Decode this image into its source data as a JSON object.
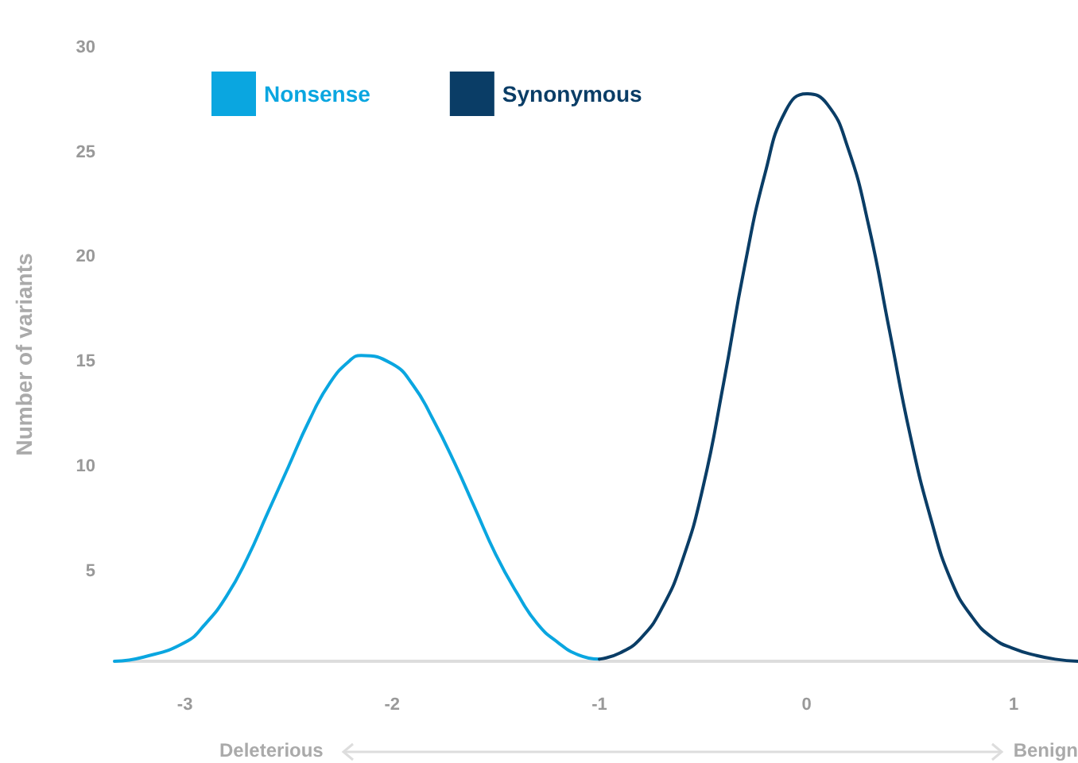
{
  "chart_data": {
    "type": "line",
    "ylabel": "Number of variants",
    "xlim": [
      -3.34,
      1.31
    ],
    "xticks": [
      -3,
      -2,
      -1,
      0,
      1
    ],
    "ylim": [
      0.7,
      30
    ],
    "yticks": [
      5,
      10,
      15,
      20,
      25,
      30
    ],
    "grid": false,
    "legend": "top left",
    "marker": "none",
    "line_style": "solid",
    "annotations": [
      "Deleterious",
      "Benign"
    ],
    "series": [
      {
        "name": "Nonsense",
        "color": "#0aa6e0",
        "x": [
          -3.34,
          -3.2,
          -3.0,
          -2.9,
          -2.8,
          -2.7,
          -2.6,
          -2.5,
          -2.4,
          -2.3,
          -2.2,
          -2.15,
          -2.0,
          -1.9,
          -1.8,
          -1.7,
          -1.6,
          -1.5,
          -1.4,
          -1.3,
          -1.2,
          -1.1,
          -1.0
        ],
        "values": [
          0.7,
          0.9,
          1.6,
          2.5,
          3.8,
          5.6,
          7.8,
          10.0,
          12.2,
          14.0,
          15.1,
          15.3,
          14.9,
          13.9,
          12.2,
          10.2,
          8.0,
          5.8,
          4.0,
          2.5,
          1.6,
          1.0,
          0.8
        ]
      },
      {
        "name": "Synonymous",
        "color": "#0a3d66",
        "x": [
          -1.0,
          -0.9,
          -0.8,
          -0.7,
          -0.6,
          -0.5,
          -0.4,
          -0.3,
          -0.2,
          -0.1,
          0,
          0.1,
          0.2,
          0.3,
          0.4,
          0.5,
          0.6,
          0.7,
          0.8,
          0.9,
          1.0,
          1.1,
          1.2,
          1.31
        ],
        "values": [
          0.8,
          1.1,
          1.8,
          3.2,
          5.5,
          9.0,
          14.0,
          19.5,
          24.0,
          27.0,
          27.8,
          27.3,
          25.2,
          21.5,
          16.5,
          11.5,
          7.5,
          4.5,
          2.8,
          1.8,
          1.3,
          1.0,
          0.8,
          0.7
        ]
      }
    ]
  }
}
